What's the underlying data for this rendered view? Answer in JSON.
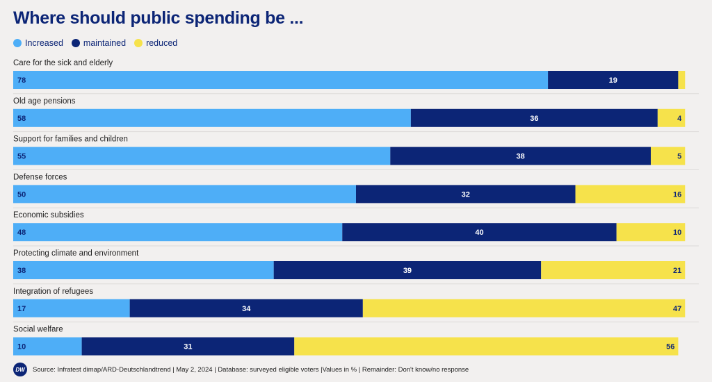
{
  "chart_data": {
    "type": "bar",
    "orientation": "horizontal",
    "stacked": true,
    "title": "Where should public spending be ...",
    "categories": [
      "Care for the sick and elderly",
      "Old age pensions",
      "Support for families and children",
      "Defense forces",
      "Economic subsidies",
      "Protecting climate and environment",
      "Integration of refugees",
      "Social welfare"
    ],
    "series": [
      {
        "name": "Increased",
        "color": "#4eaef7",
        "label_color": "#0c2576",
        "values": [
          78,
          58,
          55,
          50,
          48,
          38,
          17,
          10
        ]
      },
      {
        "name": "maintained",
        "color": "#0c2576",
        "label_color": "#ffffff",
        "values": [
          19,
          36,
          38,
          32,
          40,
          39,
          34,
          31
        ]
      },
      {
        "name": "reduced",
        "color": "#f6e24b",
        "label_color": "#0c2576",
        "values": [
          1,
          4,
          5,
          16,
          10,
          21,
          47,
          56
        ]
      }
    ],
    "value_labels": [
      [
        "78",
        "19",
        ""
      ],
      [
        "58",
        "36",
        "4"
      ],
      [
        "55",
        "38",
        "5"
      ],
      [
        "50",
        "32",
        "16"
      ],
      [
        "48",
        "40",
        "10"
      ],
      [
        "38",
        "39",
        "21"
      ],
      [
        "17",
        "34",
        "47"
      ],
      [
        "10",
        "31",
        "56"
      ]
    ],
    "xlim": [
      0,
      100
    ],
    "xlabel": "",
    "ylabel": "",
    "legend_position": "top-left"
  },
  "source": {
    "logo_text": "DW",
    "text": "Source: Infratest dimap/ARD-Deutschlandtrend | May 2, 2024 | Database: surveyed eligible voters |Values in % | Remainder: Don't know/no response"
  },
  "colors": {
    "background": "#f2f0ef",
    "title": "#0c2576",
    "separator": "#dcdad8"
  }
}
